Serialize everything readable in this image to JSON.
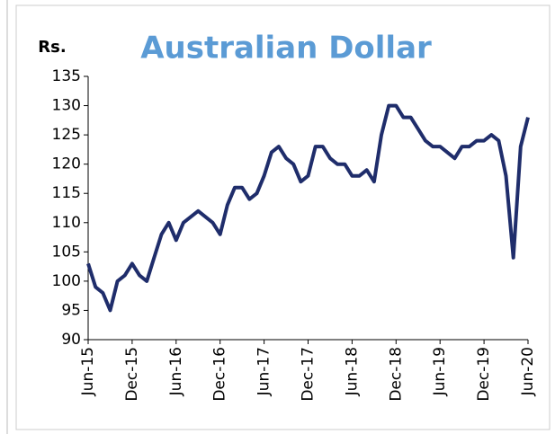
{
  "chart_data": {
    "type": "line",
    "title": "Australian Dollar",
    "y_label": "Rs.",
    "x": [
      "2015-06",
      "2015-07",
      "2015-08",
      "2015-09",
      "2015-10",
      "2015-11",
      "2015-12",
      "2016-01",
      "2016-02",
      "2016-03",
      "2016-04",
      "2016-05",
      "2016-06",
      "2016-07",
      "2016-08",
      "2016-09",
      "2016-10",
      "2016-11",
      "2016-12",
      "2017-01",
      "2017-02",
      "2017-03",
      "2017-04",
      "2017-05",
      "2017-06",
      "2017-07",
      "2017-08",
      "2017-09",
      "2017-10",
      "2017-11",
      "2017-12",
      "2018-01",
      "2018-02",
      "2018-03",
      "2018-04",
      "2018-05",
      "2018-06",
      "2018-07",
      "2018-08",
      "2018-09",
      "2018-10",
      "2018-11",
      "2018-12",
      "2019-01",
      "2019-02",
      "2019-03",
      "2019-04",
      "2019-05",
      "2019-06",
      "2019-07",
      "2019-08",
      "2019-09",
      "2019-10",
      "2019-11",
      "2019-12",
      "2020-01",
      "2020-02",
      "2020-03",
      "2020-04",
      "2020-05",
      "2020-06"
    ],
    "series": [
      {
        "name": "Australian Dollar",
        "color": "#1f2d6b",
        "values": [
          103,
          99,
          98,
          95,
          100,
          101,
          103,
          101,
          100,
          104,
          108,
          110,
          107,
          110,
          111,
          112,
          111,
          110,
          108,
          113,
          116,
          116,
          114,
          115,
          118,
          122,
          123,
          121,
          120,
          117,
          118,
          123,
          123,
          121,
          120,
          120,
          118,
          118,
          119,
          117,
          125,
          130,
          130,
          128,
          128,
          126,
          124,
          123,
          123,
          122,
          121,
          123,
          123,
          124,
          124,
          125,
          124,
          118,
          104,
          123,
          128
        ]
      }
    ],
    "ylim": [
      90,
      135
    ],
    "yticks": [
      90,
      95,
      100,
      105,
      110,
      115,
      120,
      125,
      130,
      135
    ],
    "xticks": [
      {
        "value": "2015-06",
        "label": "Jun-15"
      },
      {
        "value": "2015-12",
        "label": "Dec-15"
      },
      {
        "value": "2016-06",
        "label": "Jun-16"
      },
      {
        "value": "2016-12",
        "label": "Dec-16"
      },
      {
        "value": "2017-06",
        "label": "Jun-17"
      },
      {
        "value": "2017-12",
        "label": "Dec-17"
      },
      {
        "value": "2018-06",
        "label": "Jun-18"
      },
      {
        "value": "2018-12",
        "label": "Dec-18"
      },
      {
        "value": "2019-06",
        "label": "Jun-19"
      },
      {
        "value": "2019-12",
        "label": "Dec-19"
      },
      {
        "value": "2020-06",
        "label": "Jun-20"
      }
    ],
    "grid": false
  }
}
